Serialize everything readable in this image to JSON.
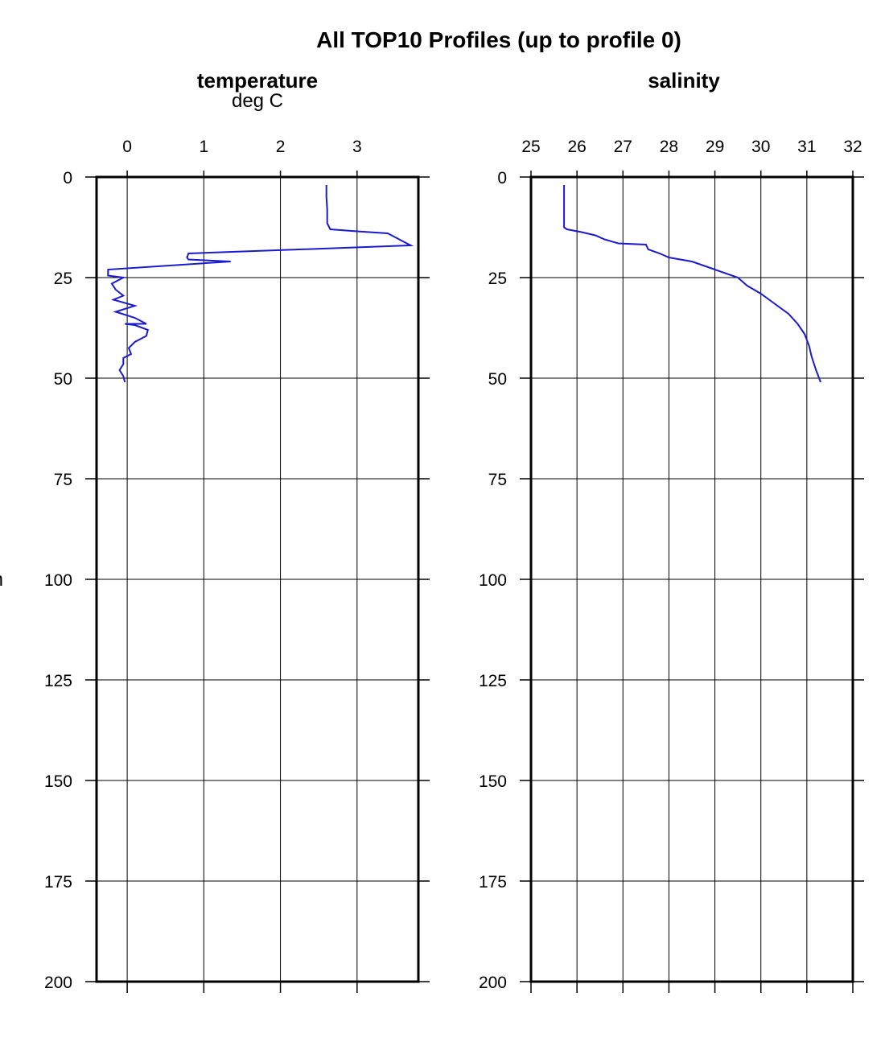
{
  "chart_data": [
    {
      "type": "line",
      "title": "temperature",
      "subtitle": "deg C",
      "super_title": "All TOP10 Profiles (up to profile 0)",
      "ylabel": "m",
      "xlim": [
        -0.4,
        3.8
      ],
      "ylim": [
        200,
        0
      ],
      "x_ticks": [
        0,
        1,
        2,
        3
      ],
      "y_ticks": [
        0,
        25,
        50,
        75,
        100,
        125,
        150,
        175,
        200
      ],
      "grid": true,
      "line_color": "#1a1ad0",
      "series": [
        {
          "x": [
            2.6,
            2.6,
            2.61,
            2.61,
            2.65,
            3.0,
            3.4,
            3.45,
            3.7,
            0.8,
            0.78,
            0.8,
            1.35,
            -0.25,
            -0.25,
            -0.05,
            -0.2,
            -0.15,
            -0.05,
            -0.18,
            0.1,
            -0.15,
            0.1,
            0.25,
            -0.03,
            0.1,
            0.27,
            0.25,
            0.1,
            0.02,
            0.05,
            -0.05,
            -0.05,
            -0.1,
            -0.05,
            -0.03
          ],
          "y": [
            2,
            5,
            8,
            11.5,
            13,
            13.5,
            14,
            14.5,
            17,
            19,
            20,
            20.5,
            21,
            23,
            24.5,
            25,
            26.5,
            28,
            29.5,
            30.5,
            32,
            33.5,
            35,
            36.5,
            36.5,
            36.8,
            38,
            39.5,
            41,
            42.5,
            44,
            45,
            46.5,
            48,
            49.5,
            51
          ]
        }
      ]
    },
    {
      "type": "line",
      "title": "salinity",
      "xlim": [
        25,
        32
      ],
      "ylim": [
        200,
        0
      ],
      "x_ticks": [
        25,
        26,
        27,
        28,
        29,
        30,
        31,
        32
      ],
      "y_ticks": [
        0,
        25,
        50,
        75,
        100,
        125,
        150,
        175,
        200
      ],
      "grid": true,
      "line_color": "#1a1ad0",
      "series": [
        {
          "x": [
            25.72,
            25.72,
            25.72,
            25.78,
            26.1,
            26.4,
            26.6,
            26.9,
            27.5,
            27.55,
            27.8,
            28.0,
            28.5,
            29.0,
            29.5,
            29.7,
            30.0,
            30.3,
            30.6,
            30.8,
            30.95,
            31.05,
            31.1,
            31.2,
            31.3
          ],
          "y": [
            2,
            8,
            12.5,
            13,
            13.7,
            14.5,
            15.5,
            16.5,
            16.8,
            18,
            19,
            20,
            21,
            23,
            25,
            27,
            29,
            31.5,
            34,
            36.5,
            39,
            42,
            44.5,
            48,
            51
          ]
        }
      ]
    }
  ]
}
